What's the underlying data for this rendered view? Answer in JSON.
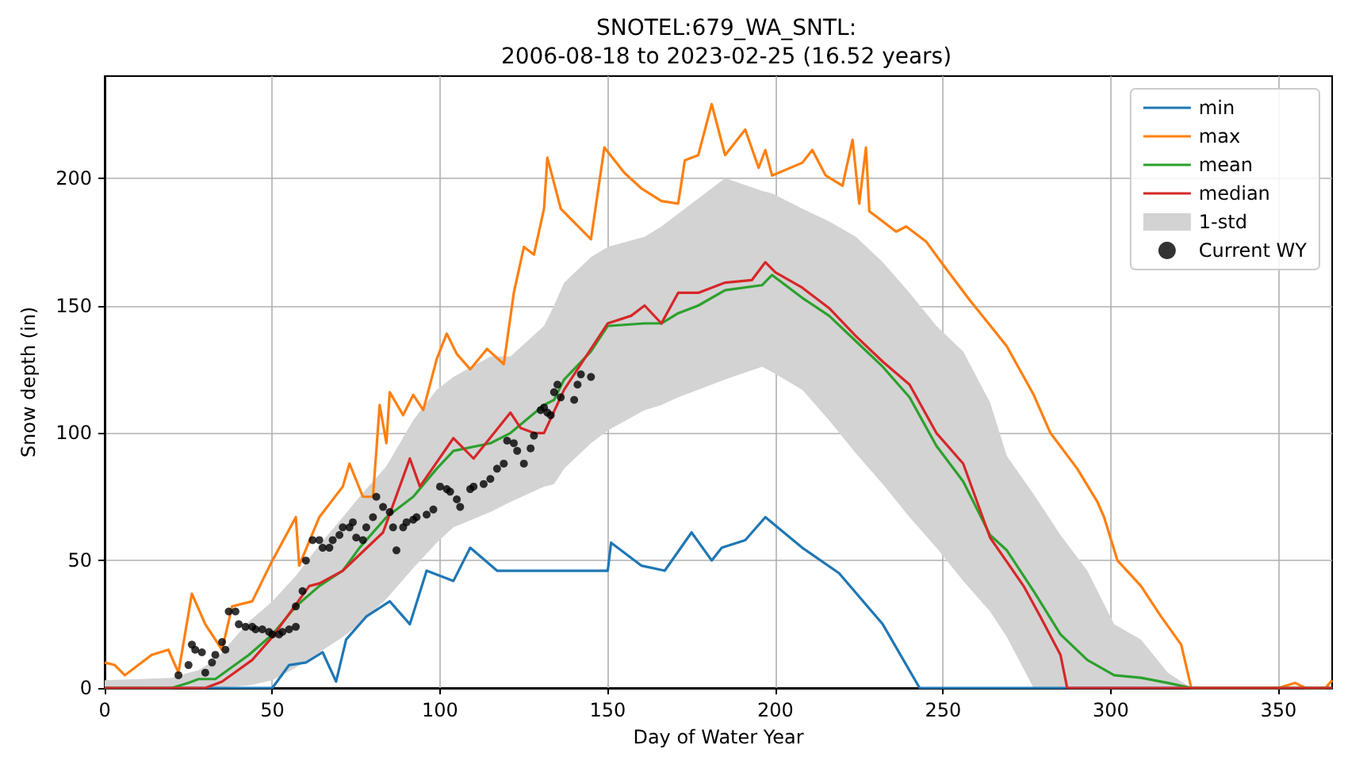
{
  "chart_data": {
    "type": "line",
    "title": "SNOTEL:679_WA_SNTL:\n2006-08-18 to 2023-02-25 (16.52 years)",
    "xlabel": "Day of Water Year",
    "ylabel": "Snow depth (in)",
    "xlim": [
      0,
      366
    ],
    "ylim": [
      0,
      240
    ],
    "xticks": [
      0,
      50,
      100,
      150,
      200,
      250,
      300,
      350
    ],
    "yticks": [
      0,
      50,
      100,
      150,
      200
    ],
    "grid": true,
    "legend": "top right",
    "series": [
      {
        "name": "min",
        "color": "#1f77b4",
        "x": [
          0,
          50,
          55,
          60,
          65,
          69,
          72,
          78,
          85,
          91,
          96,
          104,
          109,
          117,
          132,
          150,
          151,
          160,
          167,
          175,
          181,
          184,
          191,
          197,
          208,
          219,
          232,
          243,
          300,
          366
        ],
        "values": [
          0,
          0,
          9,
          10,
          14,
          2.5,
          19,
          28,
          34,
          25,
          46,
          42,
          55,
          46,
          46,
          46,
          57,
          48,
          46,
          61,
          50,
          55,
          58,
          67,
          55,
          45,
          25,
          0,
          0,
          0
        ]
      },
      {
        "name": "max",
        "color": "#ff7f0e",
        "x": [
          0,
          3,
          6,
          14,
          19,
          22,
          26,
          30,
          35,
          38,
          44,
          50,
          57,
          58,
          64,
          71,
          73,
          77,
          80,
          82,
          84,
          85,
          89,
          92,
          95,
          99,
          102,
          105,
          109,
          114,
          119,
          122,
          125,
          128,
          131,
          132,
          136,
          145,
          147,
          149,
          155,
          160,
          166,
          171,
          173,
          177,
          181,
          185,
          191,
          195,
          197,
          199,
          208,
          211,
          215,
          220,
          223,
          225,
          227,
          228,
          236,
          239,
          245,
          250,
          258,
          266,
          269,
          277,
          282,
          290,
          296,
          298,
          302,
          309,
          315,
          321,
          324,
          350,
          355,
          358,
          364,
          366
        ],
        "values": [
          10,
          9,
          5,
          13,
          15,
          6,
          37,
          25,
          15,
          32,
          34,
          50,
          67,
          48,
          67,
          79,
          88,
          75,
          75,
          111,
          96,
          116,
          107,
          115,
          109,
          129,
          139,
          131,
          125,
          133,
          127,
          155,
          173,
          170,
          188,
          208,
          188,
          176,
          194,
          212,
          202,
          196,
          191,
          190,
          207,
          209,
          229,
          209,
          219,
          204,
          211,
          201,
          206,
          211,
          201,
          197,
          215,
          190,
          212,
          187,
          179,
          181,
          175,
          166,
          152,
          139,
          134,
          115,
          100,
          86,
          73,
          67,
          50,
          40,
          28,
          17,
          0,
          0,
          2,
          0,
          0,
          3
        ]
      },
      {
        "name": "mean",
        "color": "#2ca02c",
        "x": [
          0,
          20,
          25,
          28,
          33,
          43,
          50,
          57,
          64,
          71,
          76,
          84,
          92,
          99,
          104,
          115,
          121,
          131,
          134,
          137,
          145,
          150,
          161,
          166,
          171,
          177,
          185,
          196,
          199,
          208,
          216,
          224,
          232,
          240,
          248,
          256,
          264,
          269,
          277,
          285,
          293,
          301,
          309,
          317,
          324,
          366
        ],
        "values": [
          0,
          0,
          2,
          3.5,
          3.5,
          13,
          21,
          32,
          40,
          46,
          55,
          67,
          75,
          86,
          93,
          96,
          100,
          111,
          113,
          121,
          132,
          142,
          143,
          143,
          147,
          150,
          156,
          158,
          162,
          153,
          146,
          136,
          126,
          114,
          95,
          81,
          60,
          54,
          38,
          21,
          11,
          5,
          4,
          2,
          0,
          0
        ],
        "lower": [
          0,
          0,
          0,
          0,
          0,
          1,
          3,
          8,
          14,
          20,
          25,
          35,
          47,
          57,
          63,
          69,
          73,
          79,
          80,
          86,
          96,
          101,
          109,
          111,
          114,
          117,
          121,
          126,
          124,
          117,
          105,
          92,
          80,
          67,
          55,
          42,
          30,
          20,
          0,
          0,
          0,
          0,
          0,
          0,
          0,
          0
        ],
        "upper": [
          3,
          4,
          6,
          7,
          11,
          26,
          34,
          44,
          56,
          67,
          75,
          87,
          105,
          117,
          122,
          130,
          130,
          142,
          150,
          159,
          169,
          173,
          177,
          181,
          186,
          192,
          200,
          195,
          194,
          188,
          183,
          177,
          167,
          155,
          142,
          132,
          112,
          91,
          76,
          60,
          46,
          25,
          19,
          6,
          0,
          0
        ]
      },
      {
        "name": "median",
        "color": "#d62728",
        "x": [
          0,
          30,
          35,
          44,
          50,
          61,
          64,
          71,
          83,
          91,
          94,
          104,
          110,
          121,
          124,
          128,
          131,
          137,
          145,
          150,
          157,
          161,
          166,
          171,
          177,
          185,
          193,
          197,
          200,
          208,
          216,
          224,
          232,
          240,
          248,
          256,
          264,
          274,
          279,
          285,
          287,
          366
        ],
        "values": [
          0,
          0,
          2.5,
          11,
          20,
          40,
          41,
          46,
          61,
          90,
          79,
          98,
          90,
          108,
          102,
          100,
          100,
          117,
          133,
          143,
          146,
          150,
          143,
          155,
          155,
          159,
          160,
          167,
          163,
          157,
          149,
          138,
          128,
          119,
          100,
          88,
          59,
          40,
          28,
          13,
          0,
          0
        ]
      },
      {
        "name": "1-std",
        "type": "area",
        "color": "#d3d3d3"
      },
      {
        "name": "Current WY",
        "type": "scatter",
        "marker": "circle",
        "color": "#000000",
        "x": [
          22,
          25,
          26,
          27,
          29,
          30,
          32,
          33,
          35,
          36,
          37,
          39,
          40,
          42,
          44,
          45,
          47,
          49,
          50,
          52,
          53,
          55,
          57,
          57,
          59,
          60,
          62,
          64,
          65,
          67,
          68,
          70,
          71,
          73,
          74,
          75,
          77,
          78,
          80,
          81,
          83,
          85,
          86,
          87,
          89,
          90,
          92,
          93,
          96,
          98,
          100,
          102,
          103,
          105,
          106,
          109,
          110,
          113,
          115,
          117,
          119,
          120,
          122,
          123,
          125,
          127,
          128,
          130,
          131,
          132,
          133,
          134,
          135,
          136,
          140,
          141,
          142,
          145
        ],
        "values": [
          5,
          9,
          17,
          15,
          14,
          6,
          10,
          13,
          18,
          15,
          30,
          30,
          25,
          24,
          24,
          23,
          23,
          22,
          21,
          21,
          22,
          23,
          24,
          32,
          38,
          50,
          58,
          58,
          55,
          55,
          58,
          60,
          63,
          63,
          65,
          59,
          58,
          63,
          67,
          75,
          71,
          69,
          63,
          54,
          63,
          65,
          66,
          67,
          68,
          70,
          79,
          78,
          77,
          74,
          71,
          78,
          79,
          80,
          82,
          86,
          88,
          97,
          96,
          93,
          88,
          94,
          99,
          109,
          110,
          108,
          107,
          116,
          119,
          114,
          113,
          119,
          123,
          122
        ]
      }
    ]
  }
}
